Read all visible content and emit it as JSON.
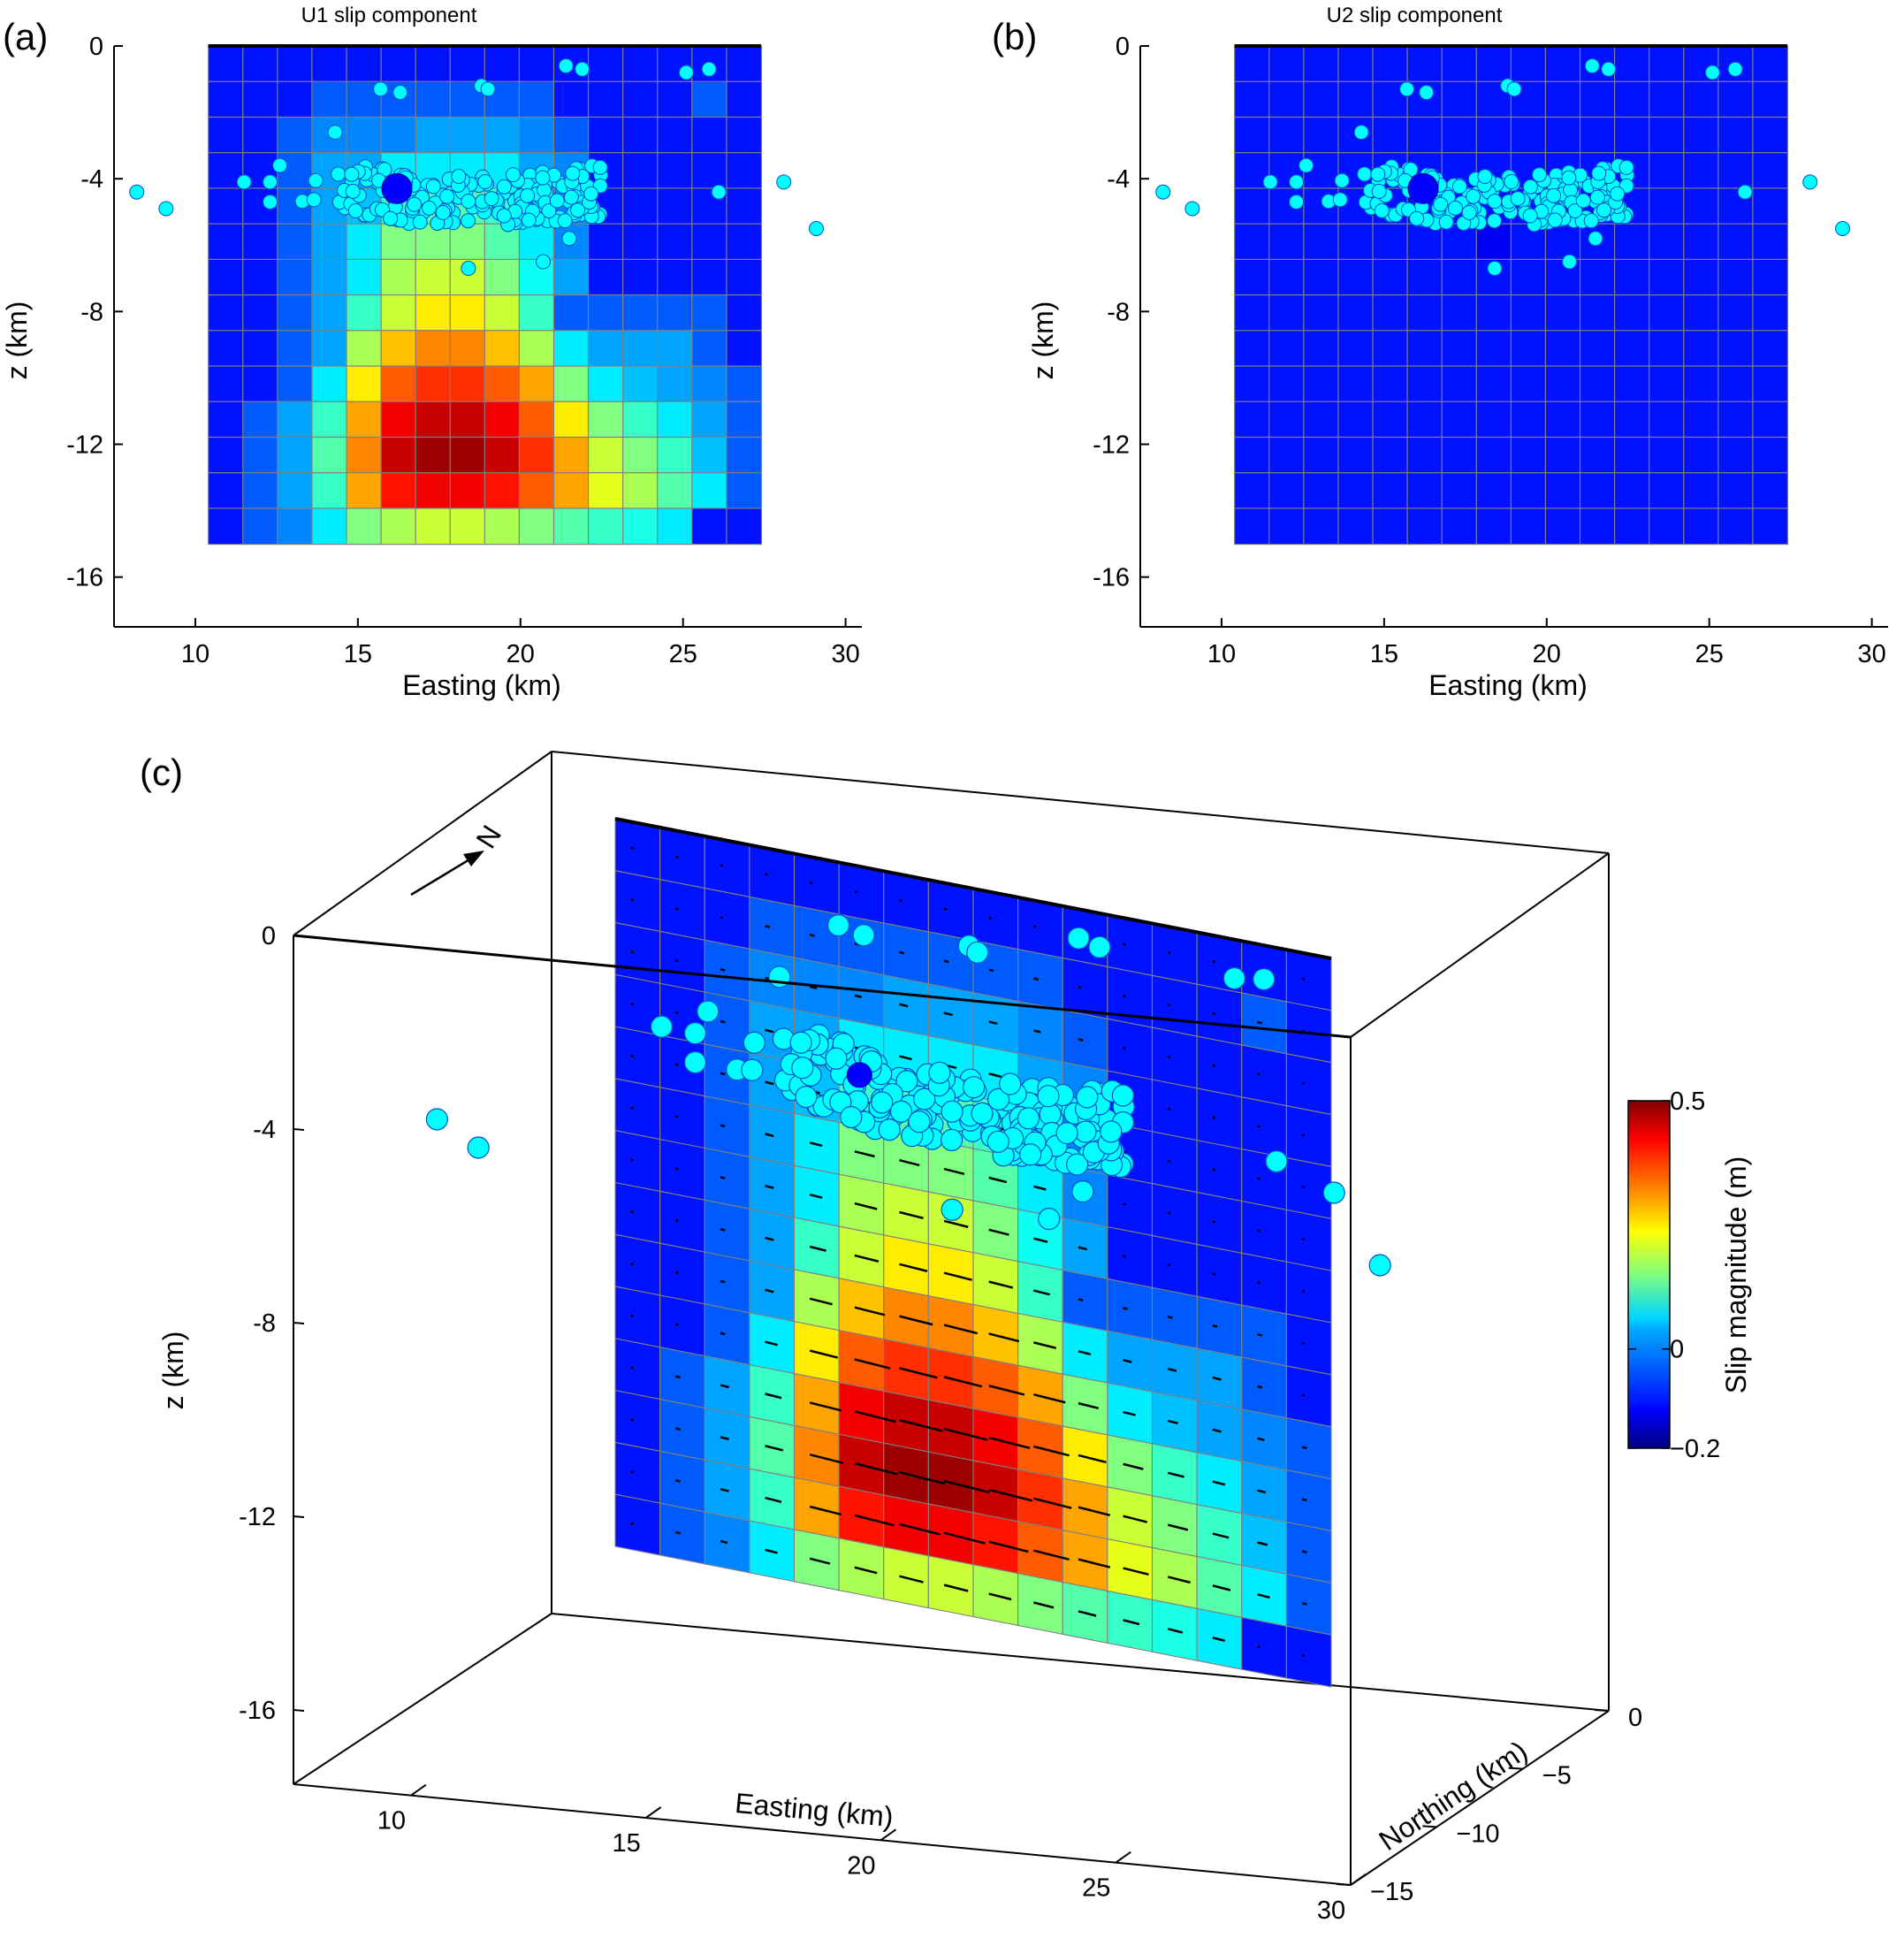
{
  "chart_data": [
    {
      "panel": "(a)",
      "type": "heatmap",
      "title": "U1 slip component",
      "xlabel": "Easting (km)",
      "ylabel": "z (km)",
      "xlim": [
        7.5,
        30.5
      ],
      "ylim": [
        -17.5,
        0
      ],
      "xticks": [
        "10",
        "15",
        "20",
        "25",
        "30"
      ],
      "yticks": [
        "0",
        "-4",
        "-8",
        "-12",
        "-16"
      ],
      "fault_top_km": 0,
      "fault_bottom_km": -15,
      "fault_x_km": [
        10.4,
        27.4
      ],
      "hypocenter": {
        "x": 16.2,
        "z": -4.3
      }
    },
    {
      "panel": "(b)",
      "type": "heatmap",
      "title": "U2 slip component",
      "xlabel": "Easting (km)",
      "ylabel": "z (km)",
      "xlim": [
        7.5,
        30.5
      ],
      "ylim": [
        -17.5,
        0
      ],
      "xticks": [
        "10",
        "15",
        "20",
        "25",
        "30"
      ],
      "yticks": [
        "0",
        "-4",
        "-8",
        "-12",
        "-16"
      ],
      "fault_top_km": 0,
      "fault_bottom_km": -15,
      "fault_x_km": [
        10.4,
        27.4
      ],
      "hypocenter": {
        "x": 16.2,
        "z": -4.3
      }
    },
    {
      "panel": "(c)",
      "type": "heatmap",
      "subtype": "3d-fault-slip",
      "xlabel": "Easting (km)",
      "ylabel": "Northing (km)",
      "zlabel": "z (km)",
      "xticks": [
        "10",
        "15",
        "20",
        "25",
        "30"
      ],
      "yticks": [
        "0",
        "−5",
        "−10",
        "−15"
      ],
      "zticks": [
        "0",
        "-4",
        "-8",
        "-12",
        "-16"
      ],
      "north_arrow": "N",
      "colorbar": {
        "label": "Slip magnitude (m)",
        "min": -0.2,
        "max": 0.5,
        "tick_labels": [
          "0.5",
          "0",
          "−0.2"
        ],
        "tick_values": [
          0.5,
          0,
          -0.2
        ],
        "colormap": "jet"
      }
    }
  ],
  "slip_grid": {
    "rows": 14,
    "cols": 16,
    "u1_values": [
      [
        -0.1,
        -0.1,
        -0.1,
        -0.1,
        -0.1,
        -0.1,
        -0.1,
        -0.1,
        -0.1,
        -0.1,
        -0.1,
        -0.1,
        -0.1,
        -0.1,
        -0.1,
        -0.1
      ],
      [
        -0.1,
        -0.1,
        -0.1,
        -0.05,
        -0.05,
        -0.05,
        -0.05,
        -0.05,
        -0.05,
        -0.05,
        -0.1,
        -0.1,
        -0.1,
        -0.1,
        -0.05,
        -0.1
      ],
      [
        -0.1,
        -0.1,
        -0.05,
        -0.02,
        -0.02,
        -0.02,
        0.0,
        0.0,
        0.0,
        -0.02,
        -0.05,
        -0.1,
        -0.1,
        -0.1,
        -0.1,
        -0.1
      ],
      [
        -0.1,
        -0.1,
        -0.05,
        0.0,
        0.0,
        0.05,
        0.05,
        0.05,
        0.05,
        0.0,
        -0.02,
        -0.1,
        -0.1,
        -0.1,
        -0.1,
        -0.1
      ],
      [
        -0.1,
        -0.1,
        -0.05,
        0.0,
        0.02,
        0.1,
        0.12,
        0.12,
        0.1,
        0.05,
        -0.02,
        -0.1,
        -0.1,
        -0.1,
        -0.1,
        -0.1
      ],
      [
        -0.1,
        -0.1,
        -0.05,
        0.0,
        0.05,
        0.15,
        0.15,
        0.15,
        0.12,
        0.05,
        -0.02,
        -0.1,
        -0.1,
        -0.1,
        -0.1,
        -0.1
      ],
      [
        -0.1,
        -0.1,
        -0.05,
        0.0,
        0.05,
        0.18,
        0.2,
        0.2,
        0.15,
        0.07,
        0.0,
        -0.1,
        -0.1,
        -0.1,
        -0.1,
        -0.1
      ],
      [
        -0.1,
        -0.1,
        -0.05,
        0.0,
        0.1,
        0.2,
        0.25,
        0.25,
        0.2,
        0.1,
        -0.05,
        -0.05,
        -0.05,
        -0.05,
        -0.05,
        -0.1
      ],
      [
        -0.1,
        -0.1,
        -0.05,
        0.0,
        0.18,
        0.28,
        0.32,
        0.32,
        0.28,
        0.18,
        0.05,
        0.0,
        0.0,
        0.0,
        -0.05,
        -0.1
      ],
      [
        -0.1,
        -0.1,
        -0.05,
        0.05,
        0.25,
        0.35,
        0.38,
        0.38,
        0.35,
        0.3,
        0.15,
        0.05,
        0.02,
        0.0,
        -0.02,
        -0.05
      ],
      [
        -0.1,
        -0.05,
        0.0,
        0.1,
        0.3,
        0.42,
        0.45,
        0.45,
        0.42,
        0.35,
        0.25,
        0.15,
        0.1,
        0.05,
        0.0,
        -0.05
      ],
      [
        -0.1,
        -0.05,
        0.0,
        0.12,
        0.32,
        0.45,
        0.48,
        0.48,
        0.45,
        0.38,
        0.3,
        0.2,
        0.15,
        0.1,
        0.02,
        -0.05
      ],
      [
        -0.1,
        -0.05,
        0.0,
        0.1,
        0.3,
        0.4,
        0.42,
        0.42,
        0.4,
        0.35,
        0.3,
        0.22,
        0.18,
        0.12,
        0.05,
        -0.05
      ],
      [
        -0.1,
        -0.05,
        -0.02,
        0.05,
        0.15,
        0.18,
        0.2,
        0.2,
        0.18,
        0.15,
        0.12,
        0.1,
        0.08,
        0.05,
        -0.1,
        -0.1
      ]
    ],
    "u2_value": -0.1
  }
}
